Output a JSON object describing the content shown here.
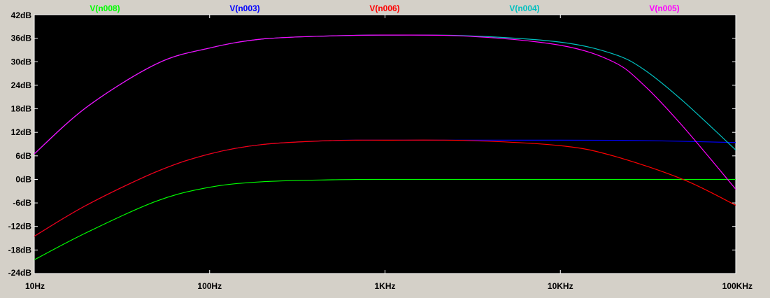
{
  "chart_data": {
    "type": "line",
    "title": "",
    "xlabel": "",
    "ylabel": "",
    "x_scale": "log",
    "xlim": [
      10,
      100000
    ],
    "ylim": [
      -24,
      42
    ],
    "grid": false,
    "legend_placement": "top",
    "x_ticks": [
      {
        "value": 10,
        "label": "10Hz"
      },
      {
        "value": 100,
        "label": "100Hz"
      },
      {
        "value": 1000,
        "label": "1KHz"
      },
      {
        "value": 10000,
        "label": "10KHz"
      },
      {
        "value": 100000,
        "label": "100KHz"
      }
    ],
    "y_ticks": [
      {
        "value": 42,
        "label": "42dB"
      },
      {
        "value": 36,
        "label": "36dB"
      },
      {
        "value": 30,
        "label": "30dB"
      },
      {
        "value": 24,
        "label": "24dB"
      },
      {
        "value": 18,
        "label": "18dB"
      },
      {
        "value": 12,
        "label": "12dB"
      },
      {
        "value": 6,
        "label": "6dB"
      },
      {
        "value": 0,
        "label": "0dB"
      },
      {
        "value": -6,
        "label": "-6dB"
      },
      {
        "value": -12,
        "label": "-12dB"
      },
      {
        "value": -18,
        "label": "-18dB"
      },
      {
        "value": -24,
        "label": "-24dB"
      }
    ],
    "series": [
      {
        "name": "V(n008)",
        "color": "#00ff00",
        "x": [
          10,
          20,
          50,
          100,
          200,
          500,
          1000,
          10000,
          100000
        ],
        "y": [
          -20.5,
          -13.5,
          -5.5,
          -2.0,
          -0.6,
          -0.1,
          0.0,
          0.0,
          0.0
        ]
      },
      {
        "name": "V(n003)",
        "color": "#0000ff",
        "x": [
          10,
          20,
          50,
          100,
          200,
          500,
          1000,
          10000,
          30000,
          100000
        ],
        "y": [
          -14.5,
          -6.5,
          2.0,
          6.5,
          8.9,
          9.9,
          10.0,
          10.0,
          9.9,
          9.4
        ]
      },
      {
        "name": "V(n006)",
        "color": "#ff0000",
        "x": [
          10,
          20,
          50,
          100,
          200,
          500,
          1000,
          3000,
          10000,
          20000,
          50000,
          100000
        ],
        "y": [
          -14.5,
          -6.5,
          2.0,
          6.5,
          8.9,
          9.9,
          10.0,
          9.9,
          8.6,
          6.0,
          0.0,
          -6.6
        ]
      },
      {
        "name": "V(n004)",
        "color": "#00c0c0",
        "x": [
          10,
          20,
          50,
          100,
          200,
          500,
          1000,
          3000,
          10000,
          20000,
          30000,
          50000,
          100000
        ],
        "y": [
          6.5,
          18.5,
          29.5,
          33.5,
          35.8,
          36.6,
          36.8,
          36.6,
          35.0,
          32.0,
          28.0,
          20.0,
          7.5
        ]
      },
      {
        "name": "V(n005)",
        "color": "#ff00ff",
        "x": [
          10,
          20,
          50,
          100,
          200,
          500,
          1000,
          3000,
          10000,
          20000,
          30000,
          50000,
          100000
        ],
        "y": [
          6.5,
          18.5,
          29.5,
          33.5,
          35.8,
          36.6,
          36.8,
          36.5,
          34.2,
          30.0,
          24.0,
          13.5,
          -2.5
        ]
      }
    ]
  }
}
